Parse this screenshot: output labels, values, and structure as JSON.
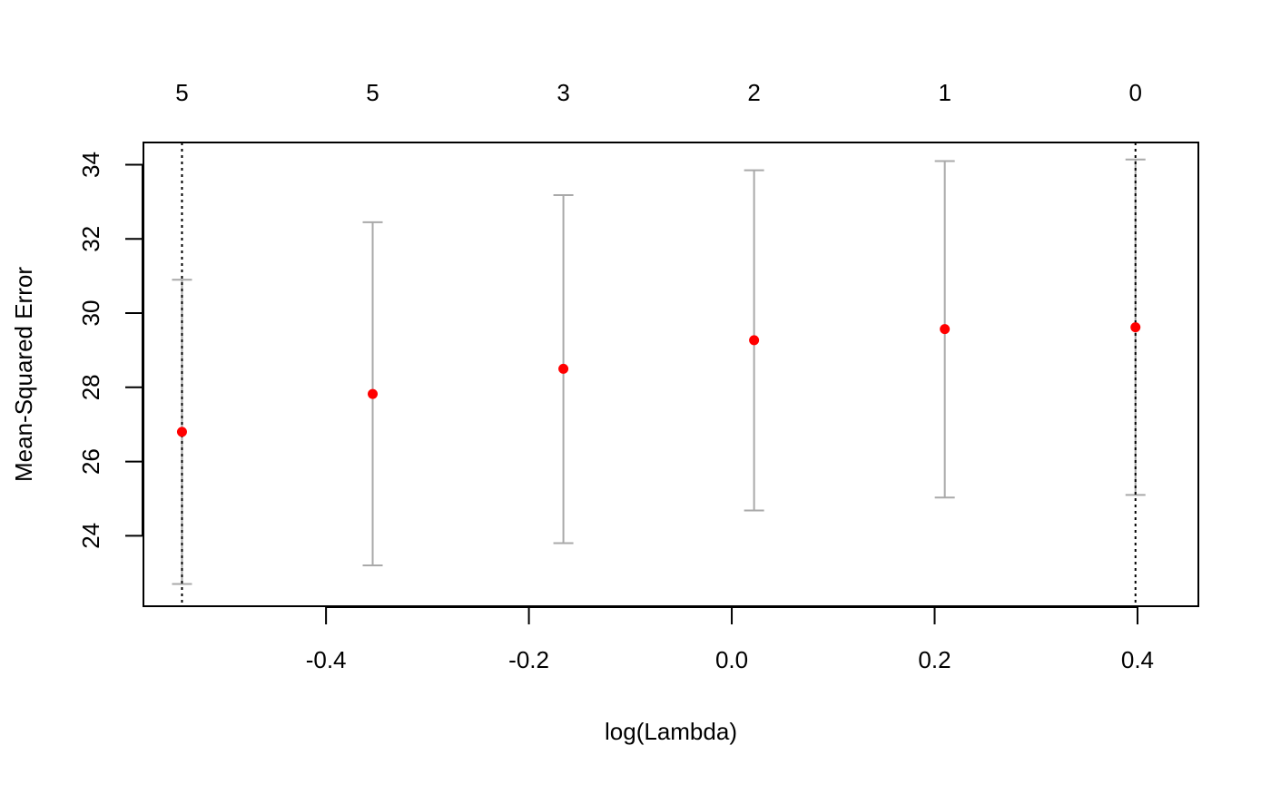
{
  "chart_data": {
    "type": "scatter",
    "title": "",
    "xlabel": "log(Lambda)",
    "ylabel": "Mean-Squared Error",
    "xlim": [
      -0.58,
      0.46
    ],
    "ylim": [
      22.1,
      34.6
    ],
    "x_ticks": [
      -0.4,
      -0.2,
      0.0,
      0.2,
      0.4
    ],
    "x_tick_labels": [
      "-0.4",
      "-0.2",
      "0.0",
      "0.2",
      "0.4"
    ],
    "y_ticks": [
      24,
      26,
      28,
      30,
      32,
      34
    ],
    "y_tick_labels": [
      "24",
      "26",
      "28",
      "30",
      "32",
      "34"
    ],
    "top_axis_labels": [
      "5",
      "5",
      "3",
      "2",
      "1",
      "0"
    ],
    "points": [
      {
        "x": -0.542,
        "y": 26.8,
        "lower": 22.7,
        "upper": 30.9
      },
      {
        "x": -0.354,
        "y": 27.82,
        "lower": 23.2,
        "upper": 32.45
      },
      {
        "x": -0.166,
        "y": 28.5,
        "lower": 23.8,
        "upper": 33.18
      },
      {
        "x": 0.022,
        "y": 29.27,
        "lower": 24.68,
        "upper": 33.85
      },
      {
        "x": 0.21,
        "y": 29.57,
        "lower": 25.03,
        "upper": 34.1
      },
      {
        "x": 0.398,
        "y": 29.62,
        "lower": 25.1,
        "upper": 34.14
      }
    ],
    "vlines": [
      -0.542,
      0.398
    ],
    "point_color": "#ff0000",
    "errorbar_color": "#a9a9a9",
    "vline_color": "#000000"
  }
}
